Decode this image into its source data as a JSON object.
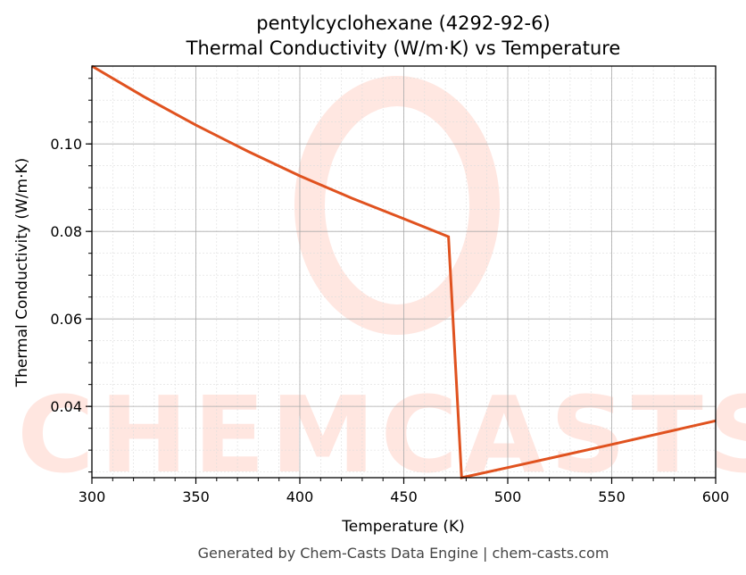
{
  "chart_data": {
    "type": "line",
    "title": "pentylcyclohexane (4292-92-6)",
    "subtitle": "Thermal Conductivity (W/m·K) vs Temperature",
    "xlabel": "Temperature (K)",
    "ylabel": "Thermal Conductivity (W/m·K)",
    "xlim": [
      300,
      600
    ],
    "ylim": [
      0.0237,
      0.1178
    ],
    "xticks": [
      300,
      350,
      400,
      450,
      500,
      550,
      600
    ],
    "xtick_labels": [
      "300",
      "350",
      "400",
      "450",
      "500",
      "550",
      "600"
    ],
    "yticks": [
      0.04,
      0.06,
      0.08,
      0.1
    ],
    "ytick_labels": [
      "0.04",
      "0.06",
      "0.08",
      "0.10"
    ],
    "grid": true,
    "series": [
      {
        "name": "Thermal Conductivity",
        "color": "#e0521f",
        "x": [
          300,
          325,
          350,
          375,
          400,
          425,
          450,
          471.5,
          477.8,
          500,
          550,
          600
        ],
        "y": [
          0.1178,
          0.1108,
          0.1043,
          0.0983,
          0.0927,
          0.0876,
          0.0829,
          0.0788,
          0.0237,
          0.026,
          0.0313,
          0.0367
        ]
      }
    ],
    "watermark": "CHEMCASTS",
    "footer": "Generated by Chem-Casts Data Engine | chem-casts.com"
  }
}
